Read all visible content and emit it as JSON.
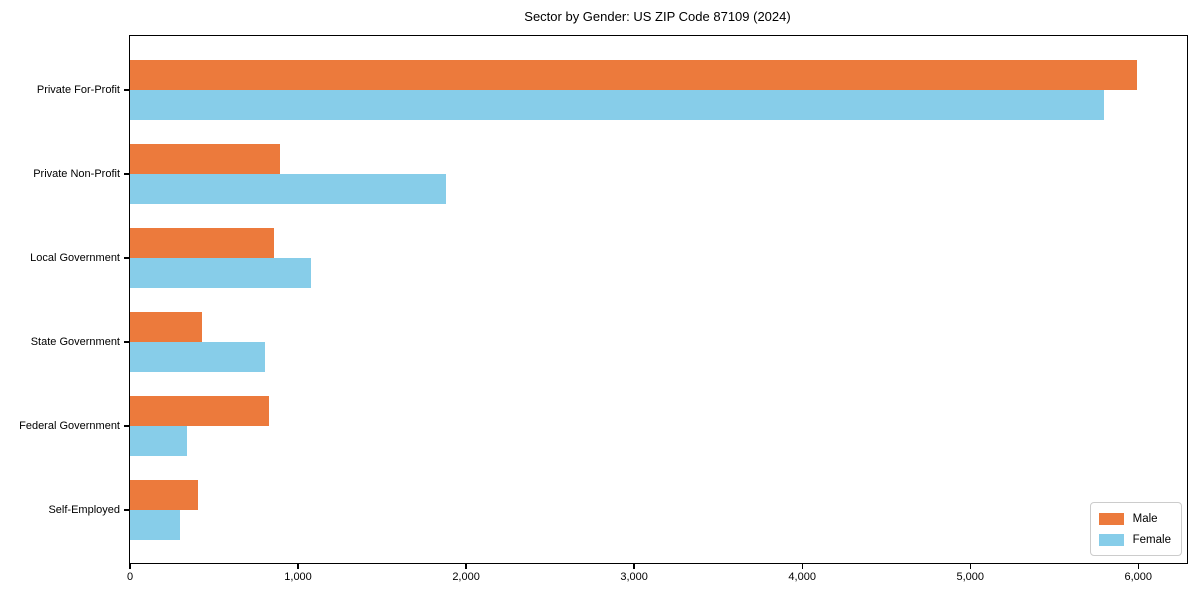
{
  "chart_data": {
    "type": "bar",
    "orientation": "horizontal",
    "title": "Sector by Gender: US ZIP Code 87109 (2024)",
    "categories": [
      "Private For-Profit",
      "Private Non-Profit",
      "Local Government",
      "State Government",
      "Federal Government",
      "Self-Employed"
    ],
    "series": [
      {
        "name": "Male",
        "color": "#EC7A3C",
        "values": [
          5990,
          895,
          855,
          430,
          825,
          405
        ]
      },
      {
        "name": "Female",
        "color": "#87CDE9",
        "values": [
          5795,
          1880,
          1075,
          805,
          340,
          295
        ]
      }
    ],
    "xlabel": "",
    "ylabel": "",
    "xlim": [
      0,
      6290
    ],
    "xticks": [
      0,
      1000,
      2000,
      3000,
      4000,
      5000,
      6000
    ],
    "xtick_labels": [
      "0",
      "1,000",
      "2,000",
      "3,000",
      "4,000",
      "5,000",
      "6,000"
    ],
    "grid": false,
    "legend": {
      "position": "lower right"
    }
  }
}
